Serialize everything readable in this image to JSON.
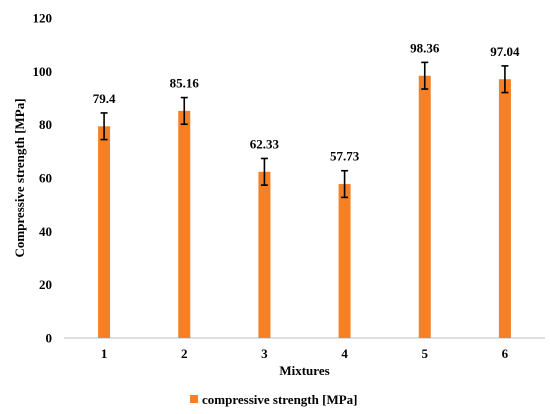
{
  "chart_data": {
    "type": "bar",
    "title": "",
    "xlabel": "Mixtures",
    "ylabel": "Compressive strength [MPa]",
    "categories": [
      "1",
      "2",
      "3",
      "4",
      "5",
      "6"
    ],
    "series": [
      {
        "name": "compressive strength [MPa]",
        "values": [
          79.4,
          85.16,
          62.33,
          57.73,
          98.36,
          97.04
        ],
        "data_labels": [
          "79.4",
          "85.16",
          "62.33",
          "57.73",
          "98.36",
          "97.04"
        ],
        "error": [
          5,
          5,
          5,
          5,
          5,
          5
        ],
        "color": "#F58025"
      }
    ],
    "ylim": [
      0,
      120
    ],
    "yticks": [
      "0",
      "20",
      "40",
      "60",
      "80",
      "100",
      "120"
    ],
    "grid": false,
    "legend_position": "bottom"
  }
}
